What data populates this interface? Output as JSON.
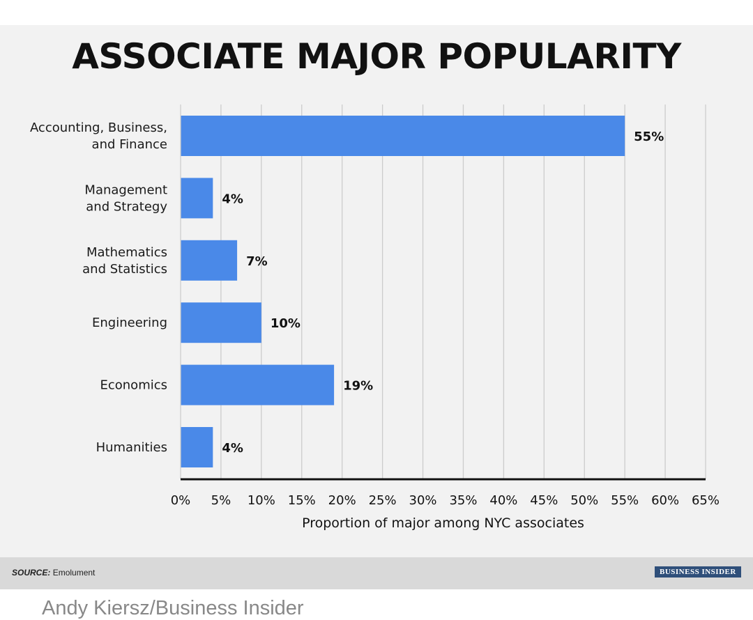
{
  "title": "ASSOCIATE MAJOR POPULARITY",
  "source_label": "SOURCE:",
  "source_value": "Emolument",
  "brand_logo": "BUSINESS INSIDER",
  "credit": "Andy Kiersz/Business Insider",
  "colors": {
    "bar": "#4a89e8",
    "grid": "#cccccc",
    "axis": "#111111",
    "background": "#f2f2f2"
  },
  "chart_data": {
    "type": "bar",
    "orientation": "horizontal",
    "categories": [
      [
        "Accounting, Business,",
        "and Finance"
      ],
      [
        "Management",
        "and Strategy"
      ],
      [
        "Mathematics",
        "and Statistics"
      ],
      [
        "Engineering"
      ],
      [
        "Economics"
      ],
      [
        "Humanities"
      ]
    ],
    "values": [
      55,
      4,
      7,
      10,
      19,
      4
    ],
    "value_labels": [
      "55%",
      "4%",
      "7%",
      "10%",
      "19%",
      "4%"
    ],
    "xlabel": "Proportion of major among NYC associates",
    "xlim": [
      0,
      65
    ],
    "xticks": [
      0,
      5,
      10,
      15,
      20,
      25,
      30,
      35,
      40,
      45,
      50,
      55,
      60,
      65
    ],
    "xtick_labels": [
      "0%",
      "5%",
      "10%",
      "15%",
      "20%",
      "25%",
      "30%",
      "35%",
      "40%",
      "45%",
      "50%",
      "55%",
      "60%",
      "65%"
    ],
    "grid": true
  }
}
